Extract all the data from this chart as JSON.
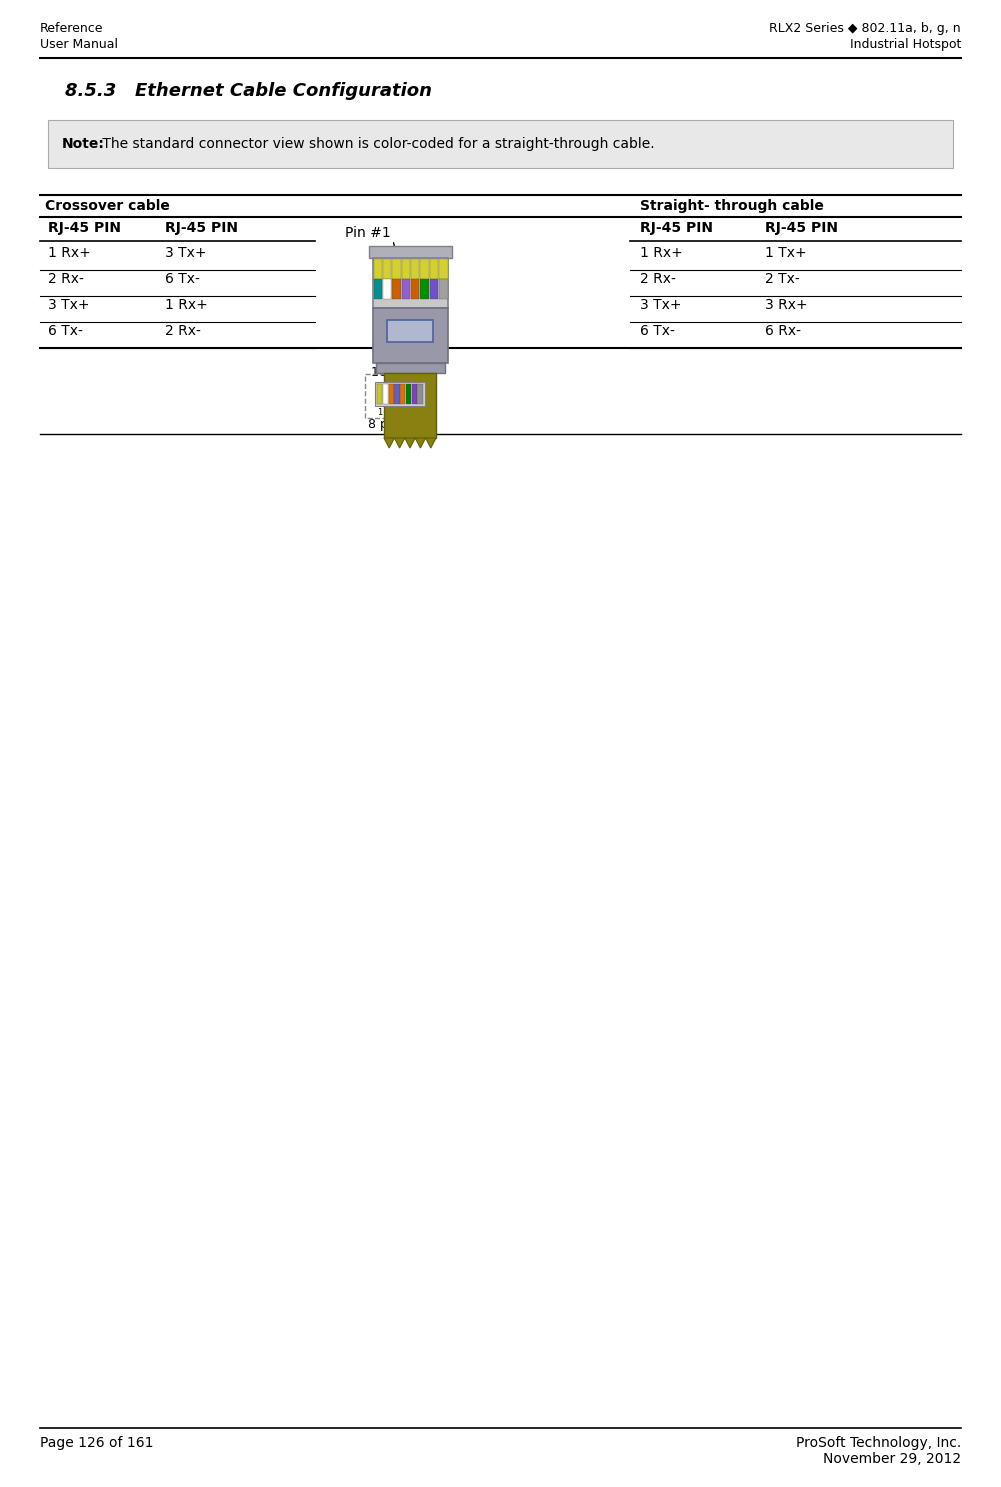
{
  "header_left_top": "Reference",
  "header_left_bottom": "User Manual",
  "header_right_top": "RLX2 Series ◆ 802.11a, b, g, n",
  "header_right_bottom": "Industrial Hotspot",
  "section_title": "8.5.3   Ethernet Cable Configuration",
  "note_text_bold": "Note:",
  "note_text_normal": " The standard connector view shown is color-coded for a straight-through cable.",
  "crossover_label": "Crossover cable",
  "straight_label": "Straight- through cable",
  "col_header": "RJ-45 PIN",
  "crossover_rows": [
    [
      "1 Rx+",
      "3 Tx+"
    ],
    [
      "2 Rx-",
      "6 Tx-"
    ],
    [
      "3 Tx+",
      "1 Rx+"
    ],
    [
      "6 Tx-",
      "2 Rx-"
    ]
  ],
  "straight_rows": [
    [
      "1 Rx+",
      "1 Tx+"
    ],
    [
      "2 Rx-",
      "2 Tx-"
    ],
    [
      "3 Tx+",
      "3 Rx+"
    ],
    [
      "6 Tx-",
      "6 Rx-"
    ]
  ],
  "pin_label": "Pin #1",
  "connector_label1": "10 BaseT",
  "connector_label2": "8 pin RJ45",
  "footer_left": "Page 126 of 161",
  "footer_right_top": "ProSoft Technology, Inc.",
  "footer_right_bottom": "November 29, 2012",
  "bg_color": "#ffffff",
  "note_bg_color": "#e8e8e8",
  "wire_colors_main": [
    "#d4d44c",
    "#d4d44c",
    "#d4d44c",
    "#d4d44c",
    "#d4d44c",
    "#d4d44c",
    "#d4d44c",
    "#d4d44c"
  ],
  "wire_colors_mid": [
    "#008080",
    "#ffffff",
    "#cc6600",
    "#9966cc",
    "#cc6600",
    "#009900",
    "#9966cc",
    "#888888"
  ],
  "connector_body_color": "#9898a8",
  "connector_edge_color": "#707080",
  "cable_color": "#808010",
  "cable_edge_color": "#606008"
}
